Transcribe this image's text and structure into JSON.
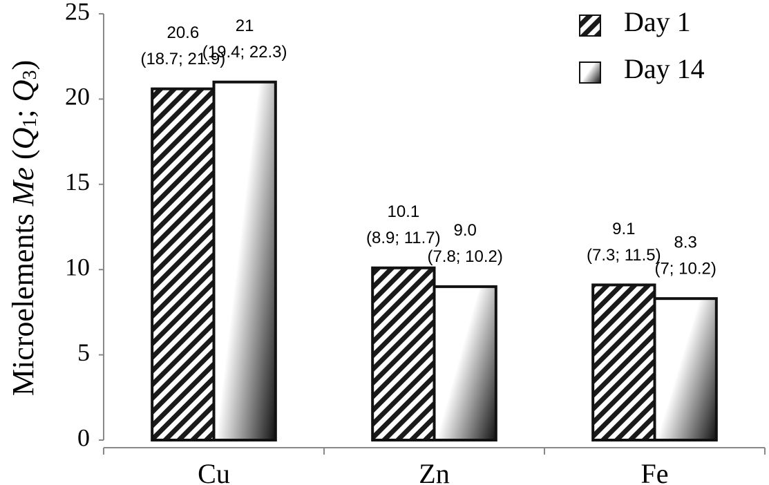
{
  "chart_data": {
    "type": "bar",
    "categories": [
      "Cu",
      "Zn",
      "Fe"
    ],
    "series": [
      {
        "name": "Day 1",
        "color": "#1a1a1a",
        "values": [
          20.6,
          10.1,
          9.1
        ],
        "value_labels": [
          "20.6",
          "10.1",
          "9.1"
        ],
        "intervals": [
          "(18.7; 21.9)",
          "(8.9; 11.7)",
          "(7.3; 11.5)"
        ]
      },
      {
        "name": "Day 14",
        "color": "#ffffff",
        "values": [
          21,
          9,
          8.3
        ],
        "value_labels": [
          "21",
          "9.0",
          "8.3"
        ],
        "intervals": [
          "(19.4; 22.3)",
          "(7.8; 10.2)",
          "(7; 10.2)"
        ]
      }
    ],
    "y_label_parts": [
      "Microelements ",
      "Me",
      " (",
      "Q",
      "1",
      "; ",
      "Q",
      "3",
      ")"
    ],
    "ylim": [
      0,
      25
    ],
    "yticks": [
      0,
      5,
      10,
      15,
      20,
      25
    ],
    "grid": false,
    "legend": "top-right"
  }
}
